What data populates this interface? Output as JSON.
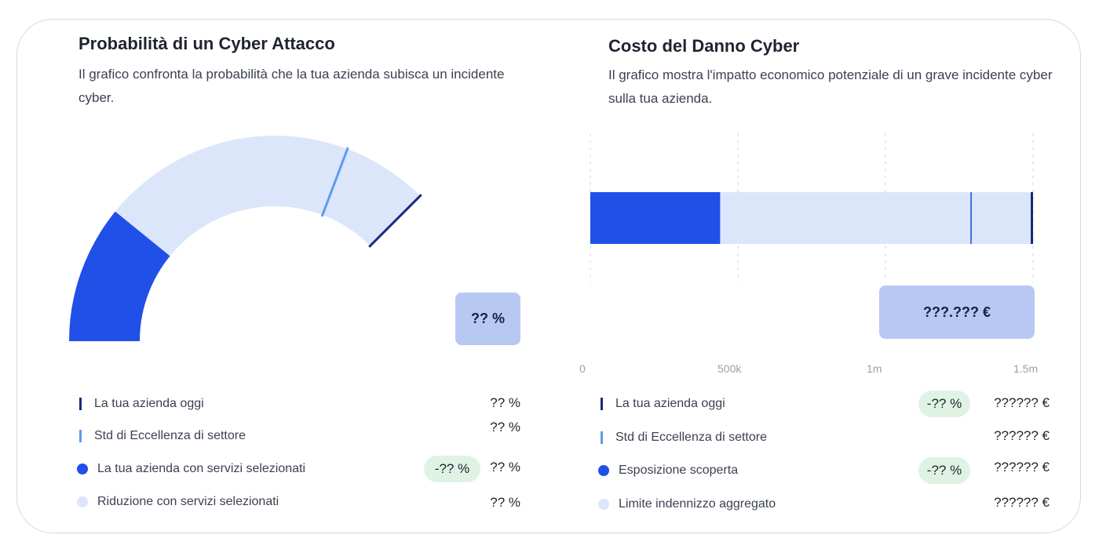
{
  "left_panel": {
    "title": "Probabilità di un Cyber Attacco",
    "description": "Il grafico confronta la probabilità che la tua azienda subisca un incidente cyber.",
    "value_box": "?? %",
    "legend": [
      {
        "label": "La tua azienda oggi",
        "value": "?? %",
        "badge": null,
        "marker": "line",
        "color": "#1a2a7a"
      },
      {
        "label": "Std di Eccellenza di settore",
        "value": "?? %",
        "badge": null,
        "marker": "line",
        "color": "#5b9bf0"
      },
      {
        "label": "La tua azienda con servizi selezionati",
        "value": "?? %",
        "badge": "-?? %",
        "marker": "dot",
        "color": "#2150e8"
      },
      {
        "label": "Riduzione con servizi selezionati",
        "value": "?? %",
        "badge": null,
        "marker": "dot",
        "color": "#dce6fa"
      }
    ]
  },
  "right_panel": {
    "title": "Costo del Danno Cyber",
    "description": "Il grafico mostra l'impatto economico potenziale di un grave incidente cyber sulla tua azienda.",
    "value_box": "???.??? €",
    "legend": [
      {
        "label": "La tua azienda oggi",
        "value": "?????? €",
        "badge": "-?? %",
        "marker": "line",
        "color": "#1a2a7a"
      },
      {
        "label": "Std di Eccellenza di settore",
        "value": "?????? €",
        "badge": null,
        "marker": "line",
        "color": "#5b9bf0"
      },
      {
        "label": "Esposizione scoperta",
        "value": "?????? €",
        "badge": "-?? %",
        "marker": "dot",
        "color": "#2150e8"
      },
      {
        "label": "Limite indennizzo aggregato",
        "value": "?????? €",
        "badge": null,
        "marker": "dot",
        "color": "#dce6fa"
      }
    ]
  },
  "chart_data": [
    {
      "type": "gauge",
      "range": [
        0,
        100
      ],
      "scale_note": "unlabeled arc gauge",
      "arc_segments": [
        {
          "name": "La tua azienda con servizi selezionati",
          "from": 0,
          "to": 29,
          "color": "#2150e8"
        },
        {
          "name": "Riduzione con servizi selezionati",
          "from": 29,
          "to": 100,
          "color": "#dce6fa"
        }
      ],
      "markers": [
        {
          "name": "Std di Eccellenza di settore",
          "at": 82,
          "color": "#5b9bf0"
        },
        {
          "name": "La tua azienda oggi",
          "at": 100,
          "color": "#1a2a7a"
        }
      ]
    },
    {
      "type": "bar",
      "orientation": "horizontal",
      "x_ticks": [
        "0",
        "500k",
        "1m",
        "1.5m"
      ],
      "xlim": [
        0,
        1500000
      ],
      "segments": [
        {
          "name": "Esposizione scoperta",
          "from": 0,
          "to": 440000,
          "color": "#2150e8"
        },
        {
          "name": "Limite indennizzo aggregato",
          "from": 440000,
          "to": 1500000,
          "color": "#dce6fa"
        }
      ],
      "markers": [
        {
          "name": "Std di Eccellenza di settore",
          "at": 1290000,
          "color": "#3f6fe0"
        },
        {
          "name": "La tua azienda oggi",
          "at": 1500000,
          "color": "#1a2a7a"
        }
      ],
      "grid": "vertical dashed"
    }
  ]
}
